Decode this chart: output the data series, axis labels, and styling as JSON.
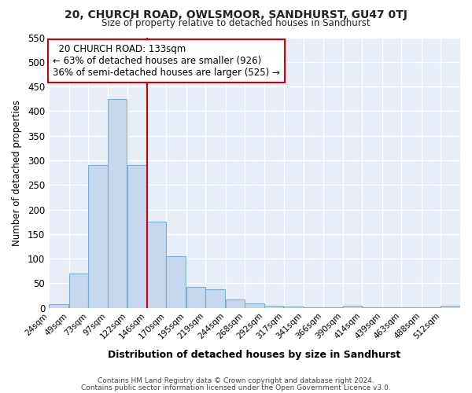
{
  "title": "20, CHURCH ROAD, OWLSMOOR, SANDHURST, GU47 0TJ",
  "subtitle": "Size of property relative to detached houses in Sandhurst",
  "xlabel": "Distribution of detached houses by size in Sandhurst",
  "ylabel": "Number of detached properties",
  "footer_line1": "Contains HM Land Registry data © Crown copyright and database right 2024.",
  "footer_line2": "Contains public sector information licensed under the Open Government Licence v3.0.",
  "annotation_line1": "  20 CHURCH ROAD: 133sqm  ",
  "annotation_line2": "← 63% of detached houses are smaller (926)",
  "annotation_line3": "36% of semi-detached houses are larger (525) →",
  "bar_color": "#c5d8ee",
  "bar_edge_color": "#7bafd4",
  "chart_bg_color": "#e8eef8",
  "fig_bg_color": "#ffffff",
  "grid_color": "#ffffff",
  "red_line_color": "#cc0000",
  "bin_starts": [
    24,
    49,
    73,
    97,
    122,
    146,
    170,
    195,
    219,
    244,
    268,
    292,
    317,
    341,
    366,
    390,
    414,
    439,
    463,
    488,
    512
  ],
  "bin_labels": [
    "24sqm",
    "49sqm",
    "73sqm",
    "97sqm",
    "122sqm",
    "146sqm",
    "170sqm",
    "195sqm",
    "219sqm",
    "244sqm",
    "268sqm",
    "292sqm",
    "317sqm",
    "341sqm",
    "366sqm",
    "390sqm",
    "414sqm",
    "439sqm",
    "463sqm",
    "488sqm",
    "512sqm"
  ],
  "bar_heights": [
    8,
    70,
    290,
    425,
    290,
    175,
    105,
    43,
    38,
    17,
    9,
    4,
    2,
    1,
    1,
    4,
    1,
    1,
    1,
    1,
    4
  ],
  "bin_width": 24,
  "red_line_x": 146,
  "ylim": [
    0,
    550
  ],
  "yticks": [
    0,
    50,
    100,
    150,
    200,
    250,
    300,
    350,
    400,
    450,
    500,
    550
  ]
}
